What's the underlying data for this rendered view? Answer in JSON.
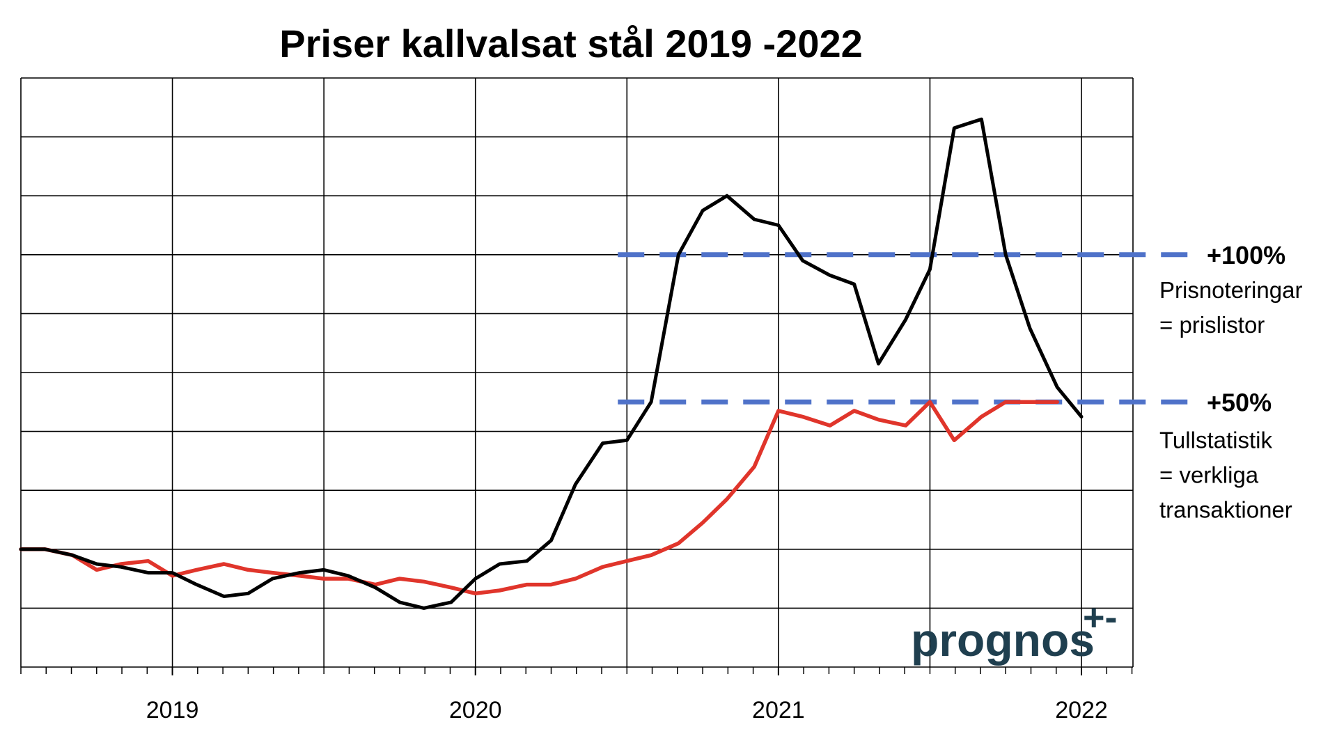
{
  "chart_data": {
    "type": "line",
    "title": "Priser kallvalsat stål 2019 -2022",
    "xlabel": "",
    "ylabel": "",
    "xlim": [
      2018.5,
      2022.17
    ],
    "ylim": [
      -0.4,
      1.6
    ],
    "x_ticks": [
      2019,
      2020,
      2021,
      2022
    ],
    "x_tick_labels": [
      "2019",
      "2020",
      "2021",
      "2022"
    ],
    "grid": true,
    "colors": {
      "prisnoteringar": "#000000",
      "tullstatistik": "#e0352b",
      "reference": "#4f72c9",
      "logo": "#1f3f4f"
    },
    "series": [
      {
        "key": "prisnoteringar",
        "x": [
          2018.5,
          2018.58,
          2018.67,
          2018.75,
          2018.83,
          2018.92,
          2019.0,
          2019.08,
          2019.17,
          2019.25,
          2019.33,
          2019.42,
          2019.5,
          2019.58,
          2019.67,
          2019.75,
          2019.83,
          2019.92,
          2020.0,
          2020.08,
          2020.17,
          2020.25,
          2020.33,
          2020.42,
          2020.5,
          2020.58,
          2020.67,
          2020.75,
          2020.83,
          2020.92,
          2021.0,
          2021.08,
          2021.17,
          2021.25,
          2021.33,
          2021.42,
          2021.5,
          2021.58,
          2021.67,
          2021.75,
          2021.83,
          2021.92,
          2022.0
        ],
        "y": [
          0.0,
          0.0,
          -0.02,
          -0.05,
          -0.06,
          -0.08,
          -0.08,
          -0.12,
          -0.16,
          -0.15,
          -0.1,
          -0.08,
          -0.07,
          -0.09,
          -0.13,
          -0.18,
          -0.2,
          -0.18,
          -0.1,
          -0.05,
          -0.04,
          0.03,
          0.22,
          0.36,
          0.37,
          0.5,
          1.0,
          1.15,
          1.2,
          1.12,
          1.1,
          0.98,
          0.93,
          0.9,
          0.63,
          0.78,
          0.95,
          1.43,
          1.46,
          1.0,
          0.75,
          0.55,
          0.45
        ],
        "note": "approximate values read from plot (monthly, relative change vs start)"
      },
      {
        "key": "tullstatistik",
        "x": [
          2018.5,
          2018.58,
          2018.67,
          2018.75,
          2018.83,
          2018.92,
          2019.0,
          2019.08,
          2019.17,
          2019.25,
          2019.33,
          2019.42,
          2019.5,
          2019.58,
          2019.67,
          2019.75,
          2019.83,
          2019.92,
          2020.0,
          2020.08,
          2020.17,
          2020.25,
          2020.33,
          2020.42,
          2020.5,
          2020.58,
          2020.67,
          2020.75,
          2020.83,
          2020.92,
          2021.0,
          2021.08,
          2021.17,
          2021.25,
          2021.33,
          2021.42,
          2021.5,
          2021.58,
          2021.67,
          2021.75,
          2021.83,
          2021.92
        ],
        "y": [
          0.0,
          0.0,
          -0.02,
          -0.07,
          -0.05,
          -0.04,
          -0.09,
          -0.07,
          -0.05,
          -0.07,
          -0.08,
          -0.09,
          -0.1,
          -0.1,
          -0.12,
          -0.1,
          -0.11,
          -0.13,
          -0.15,
          -0.14,
          -0.12,
          -0.12,
          -0.1,
          -0.06,
          -0.04,
          -0.02,
          0.02,
          0.09,
          0.17,
          0.28,
          0.47,
          0.45,
          0.42,
          0.47,
          0.44,
          0.42,
          0.5,
          0.37,
          0.45,
          0.5,
          0.5,
          0.5
        ]
      }
    ],
    "reference_lines": [
      {
        "y": 1.0,
        "x_start": 2020.47,
        "label": "+100%",
        "caption": [
          "Prisnoteringar",
          "= prislistor"
        ]
      },
      {
        "y": 0.5,
        "x_start": 2020.47,
        "label": "+50%",
        "caption": [
          "Tullstatistik",
          "= verkliga",
          "transaktioner"
        ]
      }
    ]
  },
  "logo": {
    "text": "prognos",
    "mark": "+-"
  }
}
